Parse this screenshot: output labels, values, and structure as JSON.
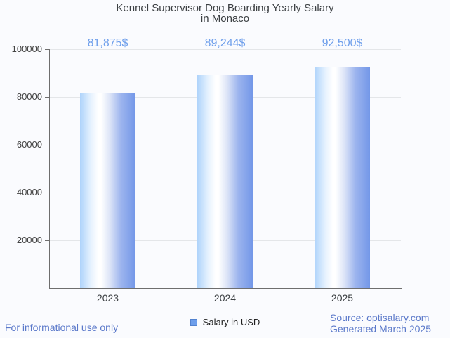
{
  "title": {
    "line1": "Kennel Supervisor Dog Boarding Yearly Salary",
    "line2": "in Monaco"
  },
  "chart_data": {
    "type": "bar",
    "title": "Kennel Supervisor Dog Boarding Yearly Salary in Monaco",
    "categories": [
      "2023",
      "2024",
      "2025"
    ],
    "values": [
      81875,
      89244,
      92500
    ],
    "bar_labels": [
      "81,875$",
      "89,244$",
      "92,500$"
    ],
    "xlabel": "",
    "ylabel": "",
    "ylim": [
      0,
      100000
    ],
    "yticks": [
      20000,
      40000,
      60000,
      80000,
      100000
    ],
    "ytick_labels": [
      "20000",
      "40000",
      "60000",
      "80000",
      "100000"
    ],
    "grid": true,
    "legend_position": "bottom"
  },
  "legend": {
    "label": "Salary in USD"
  },
  "footer": {
    "left": "For informational use only",
    "source": "Source: optisalary.com",
    "generated": "Generated March 2025"
  },
  "colors": {
    "background": "#fafbfe",
    "bar_gradient_left": "#aed3fb",
    "bar_gradient_right": "#7397e8",
    "value_label": "#6d9eeb",
    "footer_text": "#5b79ca",
    "legend_swatch": "#6d9eeb",
    "legend_swatch_border": "#5282cf",
    "gridline": "#e4e6e9",
    "axis_line": "#6e6e6e",
    "title_text": "#3c4043",
    "tick_text": "#424242"
  }
}
